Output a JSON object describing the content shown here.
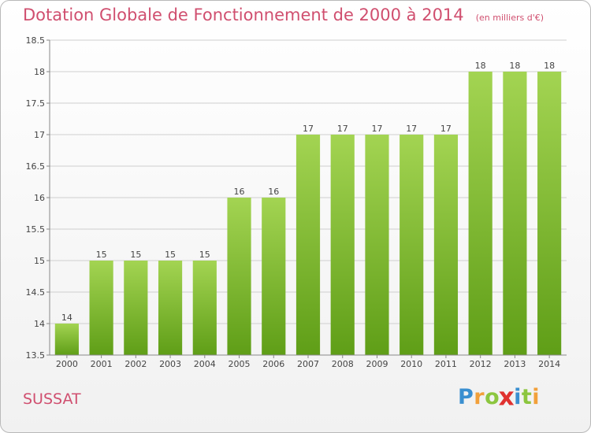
{
  "title": "Dotation Globale de Fonctionnement de 2000 à 2014",
  "unit": "(en milliers d'€)",
  "commune": "SUSSAT",
  "logo": {
    "letters": [
      "P",
      "r",
      "o",
      "x",
      "i",
      "t",
      "i"
    ],
    "colors": [
      "#3a8fd0",
      "#f2a03a",
      "#8cc63f",
      "#e0312f",
      "#3a8fd0",
      "#8cc63f",
      "#f2a03a"
    ]
  },
  "colors": {
    "title": "#d04f6f",
    "bar_light": "#a3d452",
    "bar_dark": "#5f9e17",
    "grid": "#cfcfcf",
    "axis_text": "#444444"
  },
  "chart_data": {
    "type": "bar",
    "title": "Dotation Globale de Fonctionnement de 2000 à 2014",
    "subtitle": "(en milliers d'€)",
    "categories": [
      "2000",
      "2001",
      "2002",
      "2003",
      "2004",
      "2005",
      "2006",
      "2007",
      "2008",
      "2009",
      "2010",
      "2011",
      "2012",
      "2013",
      "2014"
    ],
    "values": [
      14,
      15,
      15,
      15,
      15,
      16,
      16,
      17,
      17,
      17,
      17,
      17,
      18,
      18,
      18
    ],
    "ylim": [
      13.5,
      18.5
    ],
    "yticks": [
      13.5,
      14,
      14.5,
      15,
      15.5,
      16,
      16.5,
      17,
      17.5,
      18,
      18.5
    ],
    "ytick_labels": [
      "13.5",
      "14",
      "14.5",
      "15",
      "15.5",
      "16",
      "16.5",
      "17",
      "17.5",
      "18",
      "18.5"
    ],
    "grid": true,
    "legend": "none"
  }
}
